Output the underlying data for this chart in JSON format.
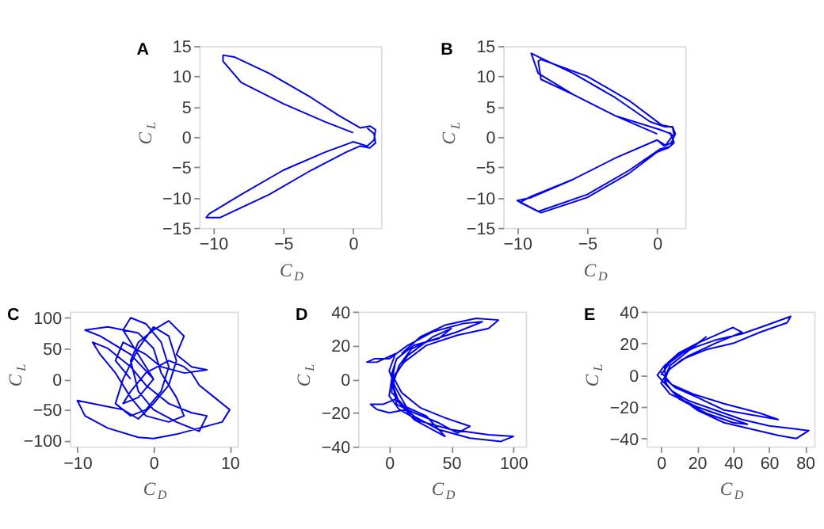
{
  "chart_data": [
    {
      "type": "line",
      "title": "A",
      "xlabel": "C$_{D}$",
      "ylabel": "C$_{L}$",
      "xlim": [
        -11,
        2
      ],
      "ylim": [
        -15,
        15
      ],
      "xticks": [
        -10,
        -5,
        0
      ],
      "yticks": [
        -15,
        -10,
        -5,
        0,
        5,
        10,
        15
      ],
      "grid": false,
      "marker": "none",
      "line_style": "solid",
      "series": [
        {
          "color": "#0000ff",
          "x": [
            0,
            -2,
            -5,
            -8,
            -9.3,
            -9.3,
            -8.5,
            -6,
            -3,
            -1,
            0.5,
            1.2,
            1.6,
            1.5,
            1,
            0,
            -2,
            -5,
            -8,
            -10.3,
            -10.5,
            -9.5,
            -6,
            -3,
            -0.5,
            0.5,
            1.2,
            1.6,
            1.5,
            1
          ],
          "values": [
            0.7,
            2.5,
            5.5,
            9,
            12.5,
            13.5,
            13.2,
            10.5,
            6.5,
            3.5,
            1.5,
            1.8,
            1.2,
            -0.5,
            -1.5,
            -0.8,
            -2.5,
            -5.5,
            -9.5,
            -12.7,
            -13.3,
            -13.3,
            -9.5,
            -5.5,
            -2.5,
            -1.5,
            -1.8,
            -1,
            0.5,
            1.5
          ]
        }
      ]
    },
    {
      "type": "line",
      "title": "B",
      "xlabel": "C$_{D}$",
      "ylabel": "C$_{L}$",
      "xlim": [
        -11,
        2
      ],
      "ylim": [
        -15,
        15
      ],
      "xticks": [
        -10,
        -5,
        0
      ],
      "yticks": [
        -15,
        -10,
        -5,
        0,
        5,
        10,
        15
      ],
      "grid": false,
      "marker": "none",
      "line_style": "solid",
      "series": [
        {
          "color": "#0000ff",
          "x": [
            0,
            -3,
            -6,
            -8.5,
            -9,
            -8.3,
            -6,
            -3,
            -0.5,
            0.5,
            1.1,
            1.3,
            1,
            0.5,
            0,
            -3,
            -6,
            -9,
            -10,
            -8.3,
            -5,
            -2,
            0,
            0.8,
            1.2,
            1,
            0.2,
            -3,
            -6,
            -8.3,
            -8.5,
            -8.3,
            -5,
            -2,
            0.3,
            1.1,
            1.2,
            0.6,
            0,
            -3,
            -6,
            -9,
            -9.8,
            -8.5,
            -5,
            -2,
            0.2,
            0.9,
            1.2,
            0.9
          ],
          "values": [
            0.5,
            3.5,
            7,
            10.5,
            13.8,
            13,
            10.5,
            6.5,
            2.5,
            1.7,
            1.7,
            0.5,
            -1,
            -1.5,
            -0.5,
            -3.5,
            -7,
            -10,
            -10.5,
            -12.5,
            -10,
            -6,
            -2.5,
            -1.8,
            -1,
            0.5,
            1.2,
            3.5,
            7,
            9.5,
            12.5,
            12.8,
            10,
            6,
            2,
            1.6,
            0.5,
            -1.4,
            -0.5,
            -3.5,
            -7,
            -9.8,
            -10.8,
            -12.3,
            -9.5,
            -5.5,
            -2,
            -1.6,
            -0.8,
            0.8
          ]
        }
      ]
    },
    {
      "type": "line",
      "title": "C",
      "xlabel": "C$_{D}$",
      "ylabel": "C$_{L}$",
      "xlim": [
        -11,
        11
      ],
      "ylim": [
        -110,
        110
      ],
      "xticks": [
        -10,
        0,
        10
      ],
      "yticks": [
        -100,
        -50,
        0,
        50,
        100
      ],
      "grid": false,
      "marker": "none",
      "line_style": "solid",
      "series": [
        {
          "color": "#0000ff",
          "x": [
            0,
            -2,
            -4,
            -3,
            -1,
            1,
            2,
            1,
            -1,
            -3,
            -5,
            -4,
            -2,
            0,
            2,
            3,
            2,
            0,
            -2,
            -4,
            -6,
            -10,
            -9,
            -6,
            -2,
            0,
            3,
            6,
            9,
            10,
            8,
            6,
            5,
            4,
            2,
            -1,
            -3,
            -4,
            -2,
            0,
            -3,
            -7,
            -9,
            -6,
            -2,
            0,
            1,
            3,
            4,
            2,
            -1,
            -3,
            -5,
            -7,
            -8,
            -6,
            -3,
            -1,
            2,
            5,
            7,
            6,
            3,
            0,
            -2,
            -3,
            -2,
            0,
            2,
            4,
            3,
            5,
            7,
            4,
            1,
            -1,
            -4,
            -5,
            -3
          ],
          "values": [
            0,
            40,
            80,
            100,
            90,
            60,
            20,
            -20,
            -50,
            -60,
            -40,
            0,
            50,
            85,
            70,
            30,
            -10,
            -40,
            -65,
            -50,
            -45,
            -35,
            -60,
            -80,
            -95,
            -97,
            -90,
            -80,
            -70,
            -50,
            -30,
            -10,
            10,
            20,
            30,
            10,
            -20,
            -40,
            -30,
            0,
            40,
            70,
            80,
            85,
            75,
            50,
            10,
            -30,
            -60,
            -70,
            -60,
            -30,
            10,
            40,
            60,
            50,
            20,
            -10,
            -40,
            -55,
            -60,
            -85,
            -70,
            -50,
            -20,
            30,
            60,
            80,
            95,
            70,
            40,
            20,
            15,
            10,
            20,
            40,
            60,
            30,
            0
          ]
        }
      ]
    },
    {
      "type": "line",
      "title": "D",
      "xlabel": "C$_{D}$",
      "ylabel": "C$_{L}$",
      "xlim": [
        -25,
        110
      ],
      "ylim": [
        -40,
        40
      ],
      "xticks": [
        0,
        50,
        100
      ],
      "yticks": [
        -40,
        -20,
        0,
        20,
        40
      ],
      "grid": false,
      "marker": "none",
      "line_style": "solid",
      "series": [
        {
          "color": "#0000ff",
          "x": [
            10,
            25,
            45,
            70,
            88,
            80,
            55,
            30,
            12,
            2,
            0,
            8,
            25,
            50,
            80,
            100,
            90,
            65,
            40,
            20,
            5,
            -5,
            -15,
            -10,
            0,
            15,
            5,
            0,
            5,
            -10,
            -18,
            -12,
            0,
            15,
            35,
            60,
            75,
            55,
            30,
            18,
            8,
            3,
            6,
            20,
            40,
            55,
            65,
            45,
            25,
            10,
            2,
            6,
            20,
            40,
            50,
            35,
            15,
            3,
            2,
            12,
            30,
            45,
            35,
            20,
            8,
            2,
            5
          ],
          "values": [
            15,
            25,
            32,
            36,
            35,
            30,
            26,
            20,
            10,
            0,
            -10,
            -18,
            -25,
            -30,
            -33,
            -34,
            -37,
            -35,
            -30,
            -22,
            -12,
            -15,
            -15,
            -18,
            -20,
            -18,
            -5,
            5,
            15,
            10,
            10,
            12,
            12,
            20,
            28,
            33,
            34,
            28,
            22,
            18,
            8,
            -3,
            -15,
            -20,
            -26,
            -32,
            -28,
            -23,
            -17,
            -8,
            3,
            12,
            20,
            24,
            30,
            25,
            14,
            0,
            -8,
            -16,
            -22,
            -34,
            -30,
            -24,
            -14,
            -2,
            10
          ]
        }
      ]
    },
    {
      "type": "line",
      "title": "E",
      "xlabel": "C$_{D}$",
      "ylabel": "C$_{L}$",
      "xlim": [
        -8,
        85
      ],
      "ylim": [
        -45,
        40
      ],
      "xticks": [
        0,
        20,
        40,
        60,
        80
      ],
      "yticks": [
        -40,
        -20,
        0,
        20,
        40
      ],
      "grid": false,
      "marker": "none",
      "line_style": "solid",
      "series": [
        {
          "color": "#0000ff",
          "x": [
            0,
            5,
            12,
            20,
            30,
            45,
            60,
            72,
            70,
            55,
            40,
            25,
            12,
            4,
            2,
            6,
            15,
            30,
            45,
            60,
            75,
            82,
            75,
            65,
            50,
            35,
            20,
            8,
            1,
            -2,
            2,
            10,
            20,
            30,
            40,
            45,
            30,
            15,
            5,
            0,
            5,
            20,
            35,
            48,
            40,
            25,
            10,
            3,
            2,
            8,
            18,
            25,
            15,
            5,
            2,
            8,
            20,
            35,
            50,
            65,
            55,
            35,
            18,
            6,
            0
          ],
          "values": [
            0,
            8,
            14,
            18,
            22,
            26,
            32,
            37,
            33,
            27,
            20,
            16,
            10,
            3,
            -4,
            -10,
            -16,
            -22,
            -28,
            -32,
            -34,
            -35,
            -40,
            -38,
            -34,
            -30,
            -22,
            -12,
            -4,
            0,
            6,
            14,
            20,
            25,
            30,
            27,
            20,
            12,
            4,
            -5,
            -12,
            -20,
            -26,
            -31,
            -30,
            -24,
            -15,
            -6,
            5,
            12,
            18,
            24,
            15,
            6,
            -2,
            -8,
            -14,
            -22,
            -25,
            -28,
            -24,
            -18,
            -12,
            -6,
            2
          ]
        }
      ]
    }
  ]
}
